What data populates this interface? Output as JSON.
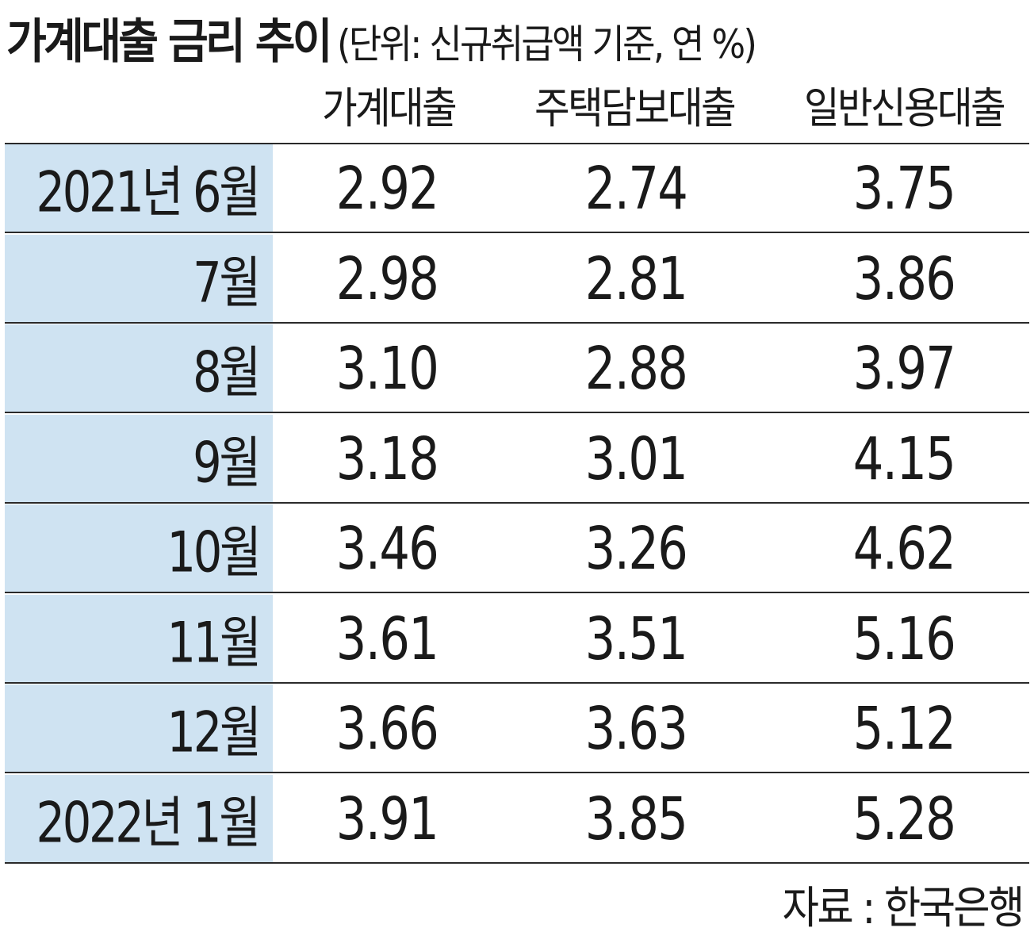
{
  "chart_data": {
    "type": "table",
    "title": "가계대출 금리 추이",
    "subtitle": "(단위: 신규취급액 기준, 연 %)",
    "columns": [
      "가계대출",
      "주택담보대출",
      "일반신용대출"
    ],
    "rows": [
      {
        "label": "2021년 6월",
        "values": [
          "2.92",
          "2.74",
          "3.75"
        ]
      },
      {
        "label": "7월",
        "values": [
          "2.98",
          "2.81",
          "3.86"
        ]
      },
      {
        "label": "8월",
        "values": [
          "3.10",
          "2.88",
          "3.97"
        ]
      },
      {
        "label": "9월",
        "values": [
          "3.18",
          "3.01",
          "4.15"
        ]
      },
      {
        "label": "10월",
        "values": [
          "3.46",
          "3.26",
          "4.62"
        ]
      },
      {
        "label": "11월",
        "values": [
          "3.61",
          "3.51",
          "5.16"
        ]
      },
      {
        "label": "12월",
        "values": [
          "3.66",
          "3.63",
          "5.12"
        ]
      },
      {
        "label": "2022년 1월",
        "values": [
          "3.91",
          "3.85",
          "5.28"
        ]
      }
    ],
    "source": "자료 : 한국은행"
  },
  "colors": {
    "label_column_background": "#cfe3f2",
    "row_rule": "#2a2a2a",
    "text": "#1a1a1a"
  }
}
